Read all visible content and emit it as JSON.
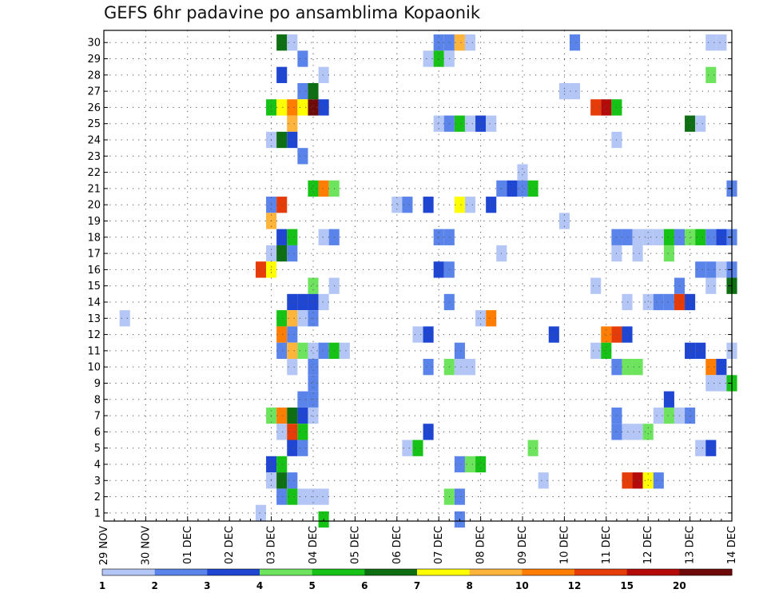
{
  "title": "GEFS 6hr padavine po ansamblima Kopaonik",
  "chart_data": {
    "type": "heatmap",
    "title": "GEFS 6hr padavine po ansamblima Kopaonik",
    "xlabel": "",
    "ylabel": "",
    "x_ticks": [
      "29 NOV",
      "30 NOV",
      "01 DEC",
      "02 DEC",
      "03 DEC",
      "04 DEC",
      "05 DEC",
      "06 DEC",
      "07 DEC",
      "08 DEC",
      "09 DEC",
      "10 DEC",
      "11 DEC",
      "12 DEC",
      "13 DEC",
      "14 DEC"
    ],
    "y_ticks": [
      1,
      2,
      3,
      4,
      5,
      6,
      7,
      8,
      9,
      10,
      11,
      12,
      13,
      14,
      15,
      16,
      17,
      18,
      19,
      20,
      21,
      22,
      23,
      24,
      25,
      26,
      27,
      28,
      29,
      30
    ],
    "x_unit": "6-hour steps from 29 NOV 00Z",
    "xlim": [
      0,
      60
    ],
    "ylim": [
      0,
      30
    ],
    "grid": true,
    "legend": {
      "placement": "bottom",
      "labels": [
        "1",
        "2",
        "3",
        "4",
        "5",
        "6",
        "7",
        "8",
        "10",
        "12",
        "15",
        "20"
      ],
      "colors": [
        "#b4c6f5",
        "#5b84ea",
        "#1e46d2",
        "#6ee45e",
        "#16c216",
        "#0e6e12",
        "#ffff00",
        "#ffb43c",
        "#ff7d00",
        "#e63c0a",
        "#b40a0a",
        "#6e0a0a"
      ]
    },
    "cells": [
      [
        30,
        17,
        5
      ],
      [
        30,
        18,
        0
      ],
      [
        30,
        32,
        1
      ],
      [
        30,
        33,
        1
      ],
      [
        30,
        34,
        7
      ],
      [
        30,
        35,
        0
      ],
      [
        30,
        45,
        1
      ],
      [
        30,
        58,
        0
      ],
      [
        30,
        59,
        0
      ],
      [
        29,
        19,
        1
      ],
      [
        29,
        31,
        0
      ],
      [
        29,
        32,
        4
      ],
      [
        29,
        33,
        0
      ],
      [
        28,
        17,
        2
      ],
      [
        28,
        21,
        0
      ],
      [
        28,
        58,
        3
      ],
      [
        27,
        19,
        1
      ],
      [
        27,
        20,
        5
      ],
      [
        27,
        44,
        0
      ],
      [
        27,
        45,
        0
      ],
      [
        26,
        16,
        4
      ],
      [
        26,
        17,
        6
      ],
      [
        26,
        18,
        8
      ],
      [
        26,
        19,
        6
      ],
      [
        26,
        20,
        11
      ],
      [
        26,
        21,
        2
      ],
      [
        26,
        47,
        9
      ],
      [
        26,
        48,
        10
      ],
      [
        26,
        49,
        4
      ],
      [
        25,
        18,
        7
      ],
      [
        25,
        32,
        0
      ],
      [
        25,
        33,
        1
      ],
      [
        25,
        34,
        4
      ],
      [
        25,
        35,
        0
      ],
      [
        25,
        36,
        2
      ],
      [
        25,
        37,
        0
      ],
      [
        25,
        56,
        5
      ],
      [
        25,
        57,
        0
      ],
      [
        24,
        16,
        0
      ],
      [
        24,
        17,
        5
      ],
      [
        24,
        18,
        2
      ],
      [
        24,
        49,
        0
      ],
      [
        23,
        19,
        1
      ],
      [
        22,
        40,
        0
      ],
      [
        21,
        20,
        4
      ],
      [
        21,
        21,
        8
      ],
      [
        21,
        22,
        3
      ],
      [
        21,
        38,
        1
      ],
      [
        21,
        39,
        2
      ],
      [
        21,
        40,
        1
      ],
      [
        21,
        41,
        4
      ],
      [
        21,
        60,
        1
      ],
      [
        20,
        16,
        1
      ],
      [
        20,
        17,
        9
      ],
      [
        20,
        28,
        0
      ],
      [
        20,
        29,
        1
      ],
      [
        20,
        31,
        2
      ],
      [
        20,
        34,
        6
      ],
      [
        20,
        35,
        0
      ],
      [
        20,
        37,
        2
      ],
      [
        19,
        16,
        7
      ],
      [
        19,
        44,
        0
      ],
      [
        18,
        17,
        2
      ],
      [
        18,
        18,
        4
      ],
      [
        18,
        21,
        0
      ],
      [
        18,
        22,
        1
      ],
      [
        18,
        32,
        1
      ],
      [
        18,
        33,
        1
      ],
      [
        18,
        49,
        1
      ],
      [
        18,
        50,
        1
      ],
      [
        18,
        51,
        0
      ],
      [
        18,
        52,
        0
      ],
      [
        18,
        53,
        0
      ],
      [
        18,
        54,
        4
      ],
      [
        18,
        55,
        1
      ],
      [
        18,
        56,
        3
      ],
      [
        18,
        57,
        4
      ],
      [
        18,
        58,
        1
      ],
      [
        18,
        59,
        2
      ],
      [
        18,
        60,
        1
      ],
      [
        17,
        16,
        0
      ],
      [
        17,
        17,
        5
      ],
      [
        17,
        18,
        1
      ],
      [
        17,
        38,
        0
      ],
      [
        17,
        49,
        0
      ],
      [
        17,
        51,
        0
      ],
      [
        17,
        54,
        3
      ],
      [
        16,
        15,
        9
      ],
      [
        16,
        16,
        6
      ],
      [
        16,
        32,
        2
      ],
      [
        16,
        33,
        1
      ],
      [
        16,
        57,
        1
      ],
      [
        16,
        58,
        1
      ],
      [
        16,
        59,
        0
      ],
      [
        16,
        60,
        1
      ],
      [
        15,
        20,
        3
      ],
      [
        15,
        22,
        0
      ],
      [
        15,
        47,
        0
      ],
      [
        15,
        55,
        1
      ],
      [
        15,
        58,
        0
      ],
      [
        15,
        60,
        5
      ],
      [
        14,
        18,
        2
      ],
      [
        14,
        19,
        2
      ],
      [
        14,
        20,
        2
      ],
      [
        14,
        21,
        0
      ],
      [
        14,
        33,
        1
      ],
      [
        14,
        50,
        0
      ],
      [
        14,
        52,
        0
      ],
      [
        14,
        53,
        1
      ],
      [
        14,
        54,
        1
      ],
      [
        14,
        55,
        9
      ],
      [
        14,
        56,
        2
      ],
      [
        13,
        2,
        0
      ],
      [
        13,
        17,
        4
      ],
      [
        13,
        18,
        7
      ],
      [
        13,
        19,
        0
      ],
      [
        13,
        20,
        1
      ],
      [
        13,
        36,
        0
      ],
      [
        13,
        37,
        8
      ],
      [
        12,
        17,
        8
      ],
      [
        12,
        18,
        1
      ],
      [
        12,
        30,
        0
      ],
      [
        12,
        31,
        2
      ],
      [
        12,
        43,
        2
      ],
      [
        12,
        48,
        8
      ],
      [
        12,
        49,
        9
      ],
      [
        12,
        50,
        2
      ],
      [
        11,
        17,
        1
      ],
      [
        11,
        18,
        7
      ],
      [
        11,
        19,
        3
      ],
      [
        11,
        20,
        0
      ],
      [
        11,
        21,
        1
      ],
      [
        11,
        22,
        4
      ],
      [
        11,
        23,
        0
      ],
      [
        11,
        34,
        1
      ],
      [
        11,
        47,
        0
      ],
      [
        11,
        48,
        4
      ],
      [
        11,
        56,
        2
      ],
      [
        11,
        57,
        2
      ],
      [
        11,
        60,
        0
      ],
      [
        10,
        18,
        0
      ],
      [
        10,
        20,
        1
      ],
      [
        10,
        31,
        1
      ],
      [
        10,
        33,
        3
      ],
      [
        10,
        34,
        0
      ],
      [
        10,
        35,
        0
      ],
      [
        10,
        49,
        1
      ],
      [
        10,
        50,
        3
      ],
      [
        10,
        51,
        3
      ],
      [
        10,
        58,
        8
      ],
      [
        10,
        59,
        2
      ],
      [
        9,
        20,
        1
      ],
      [
        9,
        58,
        0
      ],
      [
        9,
        59,
        0
      ],
      [
        9,
        60,
        4
      ],
      [
        8,
        19,
        1
      ],
      [
        8,
        20,
        1
      ],
      [
        8,
        54,
        2
      ],
      [
        7,
        16,
        3
      ],
      [
        7,
        17,
        8
      ],
      [
        7,
        18,
        5
      ],
      [
        7,
        19,
        2
      ],
      [
        7,
        20,
        0
      ],
      [
        7,
        49,
        1
      ],
      [
        7,
        53,
        0
      ],
      [
        7,
        54,
        3
      ],
      [
        7,
        55,
        0
      ],
      [
        7,
        56,
        1
      ],
      [
        6,
        17,
        0
      ],
      [
        6,
        18,
        9
      ],
      [
        6,
        19,
        4
      ],
      [
        6,
        31,
        2
      ],
      [
        6,
        49,
        1
      ],
      [
        6,
        50,
        0
      ],
      [
        6,
        51,
        0
      ],
      [
        6,
        52,
        3
      ],
      [
        5,
        18,
        2
      ],
      [
        5,
        19,
        1
      ],
      [
        5,
        29,
        0
      ],
      [
        5,
        30,
        4
      ],
      [
        5,
        41,
        3
      ],
      [
        5,
        57,
        0
      ],
      [
        5,
        58,
        2
      ],
      [
        4,
        16,
        2
      ],
      [
        4,
        17,
        4
      ],
      [
        4,
        34,
        1
      ],
      [
        4,
        35,
        3
      ],
      [
        4,
        36,
        4
      ],
      [
        3,
        16,
        0
      ],
      [
        3,
        17,
        5
      ],
      [
        3,
        18,
        1
      ],
      [
        3,
        42,
        0
      ],
      [
        3,
        50,
        9
      ],
      [
        3,
        51,
        10
      ],
      [
        3,
        52,
        6
      ],
      [
        3,
        53,
        1
      ],
      [
        2,
        17,
        1
      ],
      [
        2,
        18,
        4
      ],
      [
        2,
        19,
        0
      ],
      [
        2,
        20,
        0
      ],
      [
        2,
        21,
        0
      ],
      [
        2,
        33,
        3
      ],
      [
        2,
        34,
        1
      ],
      [
        1,
        15,
        0
      ],
      [
        0,
        21,
        4
      ],
      [
        0,
        34,
        1
      ]
    ]
  }
}
